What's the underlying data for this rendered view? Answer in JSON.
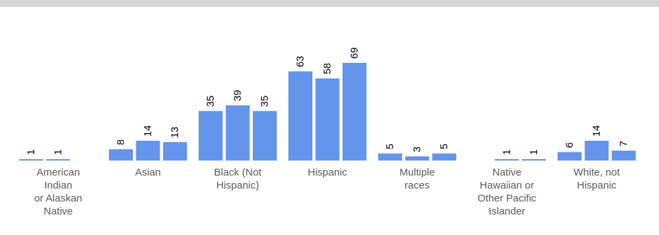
{
  "chart_data": {
    "type": "bar",
    "title": "",
    "xlabel": "",
    "ylabel": "",
    "ylim": [
      0,
      69
    ],
    "grid": false,
    "legend": "none",
    "bar_color": "#6495ed",
    "categories": [
      [
        "American",
        "Indian",
        "or Alaskan",
        "Native"
      ],
      [
        "Asian"
      ],
      [
        "Black (Not",
        "Hispanic)"
      ],
      [
        "Hispanic"
      ],
      [
        "Multiple",
        "races"
      ],
      [
        "Native",
        "Hawaiian or",
        "Other Pacific",
        "Islander"
      ],
      [
        "White, not",
        "Hispanic"
      ]
    ],
    "values": [
      [
        1,
        1,
        null
      ],
      [
        8,
        14,
        13
      ],
      [
        35,
        39,
        35
      ],
      [
        63,
        58,
        69
      ],
      [
        5,
        3,
        5
      ],
      [
        null,
        1,
        1
      ],
      [
        6,
        14,
        7
      ]
    ]
  }
}
